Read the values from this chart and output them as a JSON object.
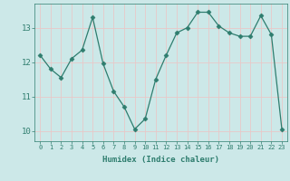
{
  "x": [
    0,
    1,
    2,
    3,
    4,
    5,
    6,
    7,
    8,
    9,
    10,
    11,
    12,
    13,
    14,
    15,
    16,
    17,
    18,
    19,
    20,
    21,
    22,
    23
  ],
  "y": [
    12.2,
    11.8,
    11.55,
    12.1,
    12.35,
    13.3,
    11.95,
    11.15,
    10.7,
    10.05,
    10.35,
    11.5,
    12.2,
    12.85,
    13.0,
    13.45,
    13.45,
    13.05,
    12.85,
    12.75,
    12.75,
    13.35,
    12.8,
    10.05
  ],
  "line_color": "#2e7d6e",
  "marker": "D",
  "marker_size": 2.5,
  "xlabel": "Humidex (Indice chaleur)",
  "ylim": [
    9.7,
    13.7
  ],
  "yticks": [
    10,
    11,
    12,
    13
  ],
  "xlim": [
    -0.5,
    23.5
  ],
  "xticks": [
    0,
    1,
    2,
    3,
    4,
    5,
    6,
    7,
    8,
    9,
    10,
    11,
    12,
    13,
    14,
    15,
    16,
    17,
    18,
    19,
    20,
    21,
    22,
    23
  ],
  "xtick_labels": [
    "0",
    "1",
    "2",
    "3",
    "4",
    "5",
    "6",
    "7",
    "8",
    "9",
    "10",
    "11",
    "12",
    "13",
    "14",
    "15",
    "16",
    "17",
    "18",
    "19",
    "20",
    "21",
    "22",
    "23"
  ],
  "background_color": "#cce8e8",
  "grid_color": "#e8c8c8",
  "tick_color": "#2e7d6e",
  "label_color": "#2e7d6e"
}
